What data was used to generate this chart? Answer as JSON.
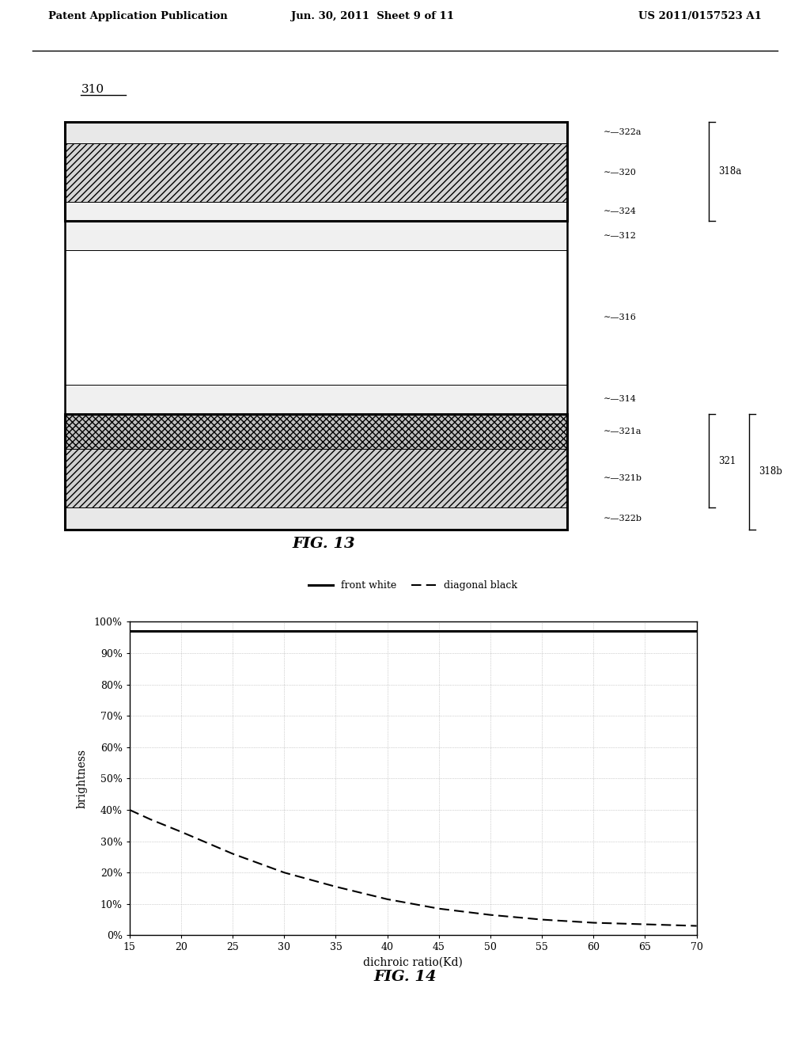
{
  "bg_color": "#ffffff",
  "header_left": "Patent Application Publication",
  "header_mid": "Jun. 30, 2011  Sheet 9 of 11",
  "header_right": "US 2011/0157523 A1",
  "fig13_label": "310",
  "fig13_caption": "FIG. 13",
  "fig14_caption": "FIG. 14",
  "front_white_x": [
    15,
    20,
    25,
    30,
    35,
    40,
    45,
    50,
    55,
    60,
    65,
    70
  ],
  "front_white_y": [
    0.97,
    0.97,
    0.97,
    0.97,
    0.97,
    0.97,
    0.97,
    0.97,
    0.97,
    0.97,
    0.97,
    0.97
  ],
  "diagonal_black_x": [
    15,
    17,
    20,
    25,
    30,
    35,
    40,
    45,
    50,
    55,
    60,
    65,
    70
  ],
  "diagonal_black_y": [
    0.4,
    0.37,
    0.33,
    0.26,
    0.2,
    0.155,
    0.115,
    0.085,
    0.065,
    0.05,
    0.04,
    0.035,
    0.03
  ],
  "xlabel": "dichroic ratio(Kd)",
  "ylabel": "brightness",
  "xmin": 15,
  "xmax": 70,
  "ymin": 0,
  "ymax": 1.0,
  "xticks": [
    15,
    20,
    25,
    30,
    35,
    40,
    45,
    50,
    55,
    60,
    65,
    70
  ],
  "yticks": [
    0.0,
    0.1,
    0.2,
    0.3,
    0.4,
    0.5,
    0.6,
    0.7,
    0.8,
    0.9,
    1.0
  ],
  "ytick_labels": [
    "0%",
    "10%",
    "20%",
    "30%",
    "40%",
    "50%",
    "60%",
    "70%",
    "80%",
    "90%",
    "100%"
  ],
  "layers": [
    {
      "hatch": "",
      "fc": "#e8e8e8",
      "wt": 0.8,
      "label": "322a"
    },
    {
      "hatch": "////",
      "fc": "#d5d5d5",
      "wt": 2.2,
      "label": "320"
    },
    {
      "hatch": "",
      "fc": "#f0f0f0",
      "wt": 0.7,
      "label": "324"
    },
    {
      "hatch": "",
      "fc": "#f0f0f0",
      "wt": 1.1,
      "label": "312"
    },
    {
      "hatch": "",
      "fc": "#ffffff",
      "wt": 5.0,
      "label": "316"
    },
    {
      "hatch": "",
      "fc": "#f0f0f0",
      "wt": 1.1,
      "label": "314"
    },
    {
      "hatch": "xxxx",
      "fc": "#c0c0c0",
      "wt": 1.3,
      "label": "321a"
    },
    {
      "hatch": "////",
      "fc": "#d0d0d0",
      "wt": 2.2,
      "label": "321b"
    },
    {
      "hatch": "",
      "fc": "#e8e8e8",
      "wt": 0.8,
      "label": "322b"
    }
  ],
  "DL": 0.08,
  "DR": 0.7,
  "DT": 0.88,
  "DB": 0.05
}
